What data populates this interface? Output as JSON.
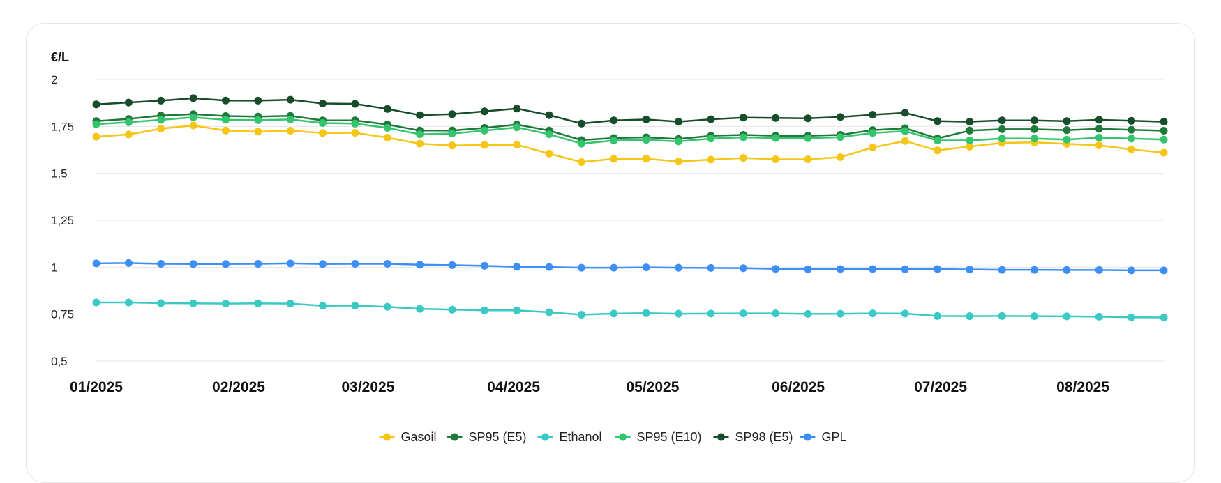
{
  "chart_data": {
    "type": "line",
    "ylabel": "€/L",
    "ylim": [
      0.5,
      2
    ],
    "yticks": [
      {
        "value": 0.5,
        "label": "0,5"
      },
      {
        "value": 0.75,
        "label": "0,75"
      },
      {
        "value": 1,
        "label": "1"
      },
      {
        "value": 1.25,
        "label": "1,25"
      },
      {
        "value": 1.5,
        "label": "1,5"
      },
      {
        "value": 1.75,
        "label": "1,75"
      },
      {
        "value": 2,
        "label": "2"
      }
    ],
    "x_ticks": [
      {
        "label": "01/2025",
        "week": 0
      },
      {
        "label": "02/2025",
        "week": 4.4
      },
      {
        "label": "03/2025",
        "week": 8.4
      },
      {
        "label": "04/2025",
        "week": 12.9
      },
      {
        "label": "05/2025",
        "week": 17.2
      },
      {
        "label": "06/2025",
        "week": 21.7
      },
      {
        "label": "07/2025",
        "week": 26.1
      },
      {
        "label": "08/2025",
        "week": 30.5
      }
    ],
    "grid": true,
    "legend_position": "bottom",
    "series": [
      {
        "name": "Gasoil",
        "color": "#f5c518",
        "values": [
          1.695,
          1.707,
          1.738,
          1.755,
          1.728,
          1.722,
          1.727,
          1.715,
          1.716,
          1.69,
          1.658,
          1.648,
          1.651,
          1.652,
          1.605,
          1.56,
          1.577,
          1.578,
          1.563,
          1.573,
          1.582,
          1.575,
          1.575,
          1.586,
          1.638,
          1.672,
          1.622,
          1.643,
          1.662,
          1.665,
          1.657,
          1.649,
          1.628,
          1.61
        ]
      },
      {
        "name": "SP95 (E5)",
        "color": "#1e7a3a",
        "values": [
          1.778,
          1.79,
          1.808,
          1.815,
          1.805,
          1.802,
          1.806,
          1.782,
          1.782,
          1.76,
          1.728,
          1.728,
          1.742,
          1.76,
          1.728,
          1.677,
          1.688,
          1.692,
          1.683,
          1.7,
          1.705,
          1.7,
          1.7,
          1.705,
          1.73,
          1.74,
          1.686,
          1.728,
          1.735,
          1.735,
          1.73,
          1.737,
          1.732,
          1.727
        ]
      },
      {
        "name": "Ethanol",
        "color": "#3ac9c5",
        "values": [
          0.812,
          0.812,
          0.808,
          0.807,
          0.806,
          0.807,
          0.806,
          0.794,
          0.795,
          0.789,
          0.778,
          0.774,
          0.77,
          0.77,
          0.76,
          0.747,
          0.753,
          0.755,
          0.752,
          0.753,
          0.754,
          0.754,
          0.751,
          0.752,
          0.754,
          0.753,
          0.74,
          0.739,
          0.74,
          0.739,
          0.738,
          0.736,
          0.733,
          0.732
        ]
      },
      {
        "name": "SP95 (E10)",
        "color": "#34c46e",
        "values": [
          1.762,
          1.772,
          1.785,
          1.798,
          1.785,
          1.783,
          1.787,
          1.768,
          1.765,
          1.742,
          1.708,
          1.712,
          1.728,
          1.745,
          1.708,
          1.658,
          1.675,
          1.678,
          1.67,
          1.685,
          1.692,
          1.688,
          1.687,
          1.693,
          1.715,
          1.725,
          1.675,
          1.675,
          1.685,
          1.685,
          1.68,
          1.69,
          1.685,
          1.68
        ]
      },
      {
        "name": "SP98 (E5)",
        "color": "#184d2c",
        "values": [
          1.867,
          1.877,
          1.887,
          1.9,
          1.888,
          1.887,
          1.892,
          1.872,
          1.87,
          1.843,
          1.81,
          1.815,
          1.83,
          1.845,
          1.81,
          1.765,
          1.782,
          1.787,
          1.775,
          1.788,
          1.797,
          1.795,
          1.793,
          1.8,
          1.812,
          1.822,
          1.778,
          1.775,
          1.782,
          1.782,
          1.778,
          1.785,
          1.78,
          1.775
        ]
      },
      {
        "name": "GPL",
        "color": "#3d8ff5",
        "values": [
          1.02,
          1.022,
          1.018,
          1.017,
          1.017,
          1.018,
          1.02,
          1.017,
          1.018,
          1.018,
          1.013,
          1.011,
          1.007,
          1.002,
          1.001,
          0.997,
          0.997,
          0.999,
          0.997,
          0.996,
          0.995,
          0.991,
          0.989,
          0.99,
          0.99,
          0.989,
          0.99,
          0.988,
          0.986,
          0.986,
          0.985,
          0.985,
          0.983,
          0.983
        ]
      }
    ]
  }
}
